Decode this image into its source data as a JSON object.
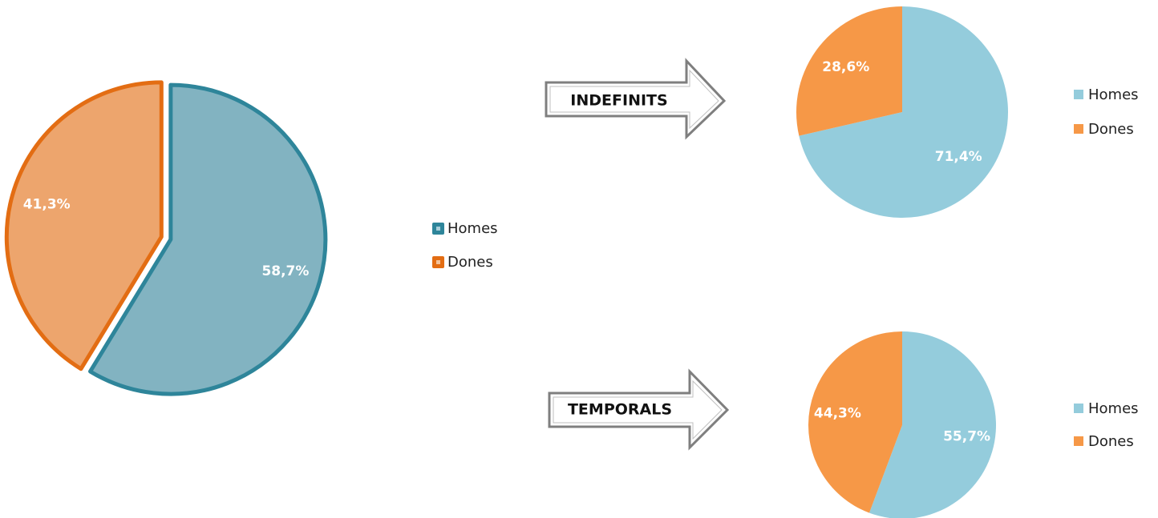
{
  "chart_data": [
    {
      "type": "pie",
      "categories": [
        "Homes",
        "Dones"
      ],
      "values": [
        58.7,
        41.3
      ],
      "labels": [
        "58,7%",
        "41,3%"
      ],
      "colors": [
        "#82b3c1",
        "#eda56d"
      ],
      "border_colors": [
        "#2e859a",
        "#e36d13"
      ],
      "legend": [
        "Homes",
        "Dones"
      ],
      "legend_placement": "right"
    },
    {
      "type": "pie",
      "caption": "INDEFINITS",
      "categories": [
        "Homes",
        "Dones"
      ],
      "values": [
        71.4,
        28.6
      ],
      "labels": [
        "71,4%",
        "28,6%"
      ],
      "colors": [
        "#94ccdc",
        "#f69847"
      ],
      "legend": [
        "Homes",
        "Dones"
      ],
      "legend_placement": "right"
    },
    {
      "type": "pie",
      "caption": "TEMPORALS",
      "categories": [
        "Homes",
        "Dones"
      ],
      "values": [
        55.7,
        44.3
      ],
      "labels": [
        "55,7%",
        "44,3%"
      ],
      "colors": [
        "#94ccdc",
        "#f69847"
      ],
      "legend": [
        "Homes",
        "Dones"
      ],
      "legend_placement": "right"
    }
  ]
}
